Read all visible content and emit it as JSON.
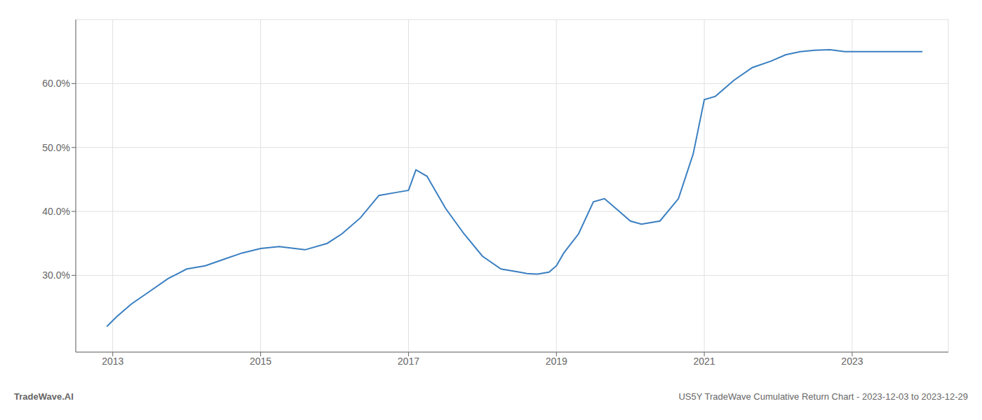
{
  "chart_data": {
    "type": "line",
    "annotations": [
      "TradeWave.AI",
      "US5Y TradeWave Cumulative Return Chart - 2023-12-03 to 2023-12-29"
    ],
    "color": "#3a7fc1",
    "x": [
      2012.92,
      2013.05,
      2013.25,
      2013.5,
      2013.75,
      2014.0,
      2014.25,
      2014.5,
      2014.75,
      2015.0,
      2015.25,
      2015.6,
      2015.9,
      2016.1,
      2016.35,
      2016.6,
      2016.85,
      2017.0,
      2017.1,
      2017.25,
      2017.5,
      2017.75,
      2018.0,
      2018.25,
      2018.5,
      2018.6,
      2018.75,
      2018.9,
      2019.0,
      2019.1,
      2019.3,
      2019.5,
      2019.65,
      2019.85,
      2020.0,
      2020.15,
      2020.4,
      2020.65,
      2020.85,
      2021.0,
      2021.15,
      2021.4,
      2021.65,
      2021.9,
      2022.1,
      2022.3,
      2022.5,
      2022.7,
      2022.9,
      2023.0,
      2023.95
    ],
    "values": [
      22.0,
      23.5,
      25.5,
      27.5,
      29.5,
      31.0,
      31.5,
      32.5,
      33.5,
      34.2,
      34.5,
      34.0,
      35.0,
      36.5,
      39.0,
      42.5,
      43.0,
      43.3,
      46.5,
      45.5,
      40.5,
      36.5,
      33.0,
      31.0,
      30.5,
      30.3,
      30.2,
      30.5,
      31.5,
      33.5,
      36.5,
      41.5,
      42.0,
      40.0,
      38.5,
      38.0,
      38.5,
      42.0,
      49.0,
      57.5,
      58.0,
      60.5,
      62.5,
      63.5,
      64.5,
      65.0,
      65.2,
      65.3,
      65.0,
      65.0,
      65.0
    ],
    "xlim": [
      2012.5,
      2024.3
    ],
    "ylim": [
      18.0,
      70.0
    ],
    "xticks": [
      2013,
      2015,
      2017,
      2019,
      2021,
      2023
    ],
    "yticks": [
      {
        "value": 30.0,
        "label": "30.0%"
      },
      {
        "value": 40.0,
        "label": "40.0%"
      },
      {
        "value": 50.0,
        "label": "50.0%"
      },
      {
        "value": 60.0,
        "label": "60.0%"
      }
    ],
    "grid": true
  }
}
